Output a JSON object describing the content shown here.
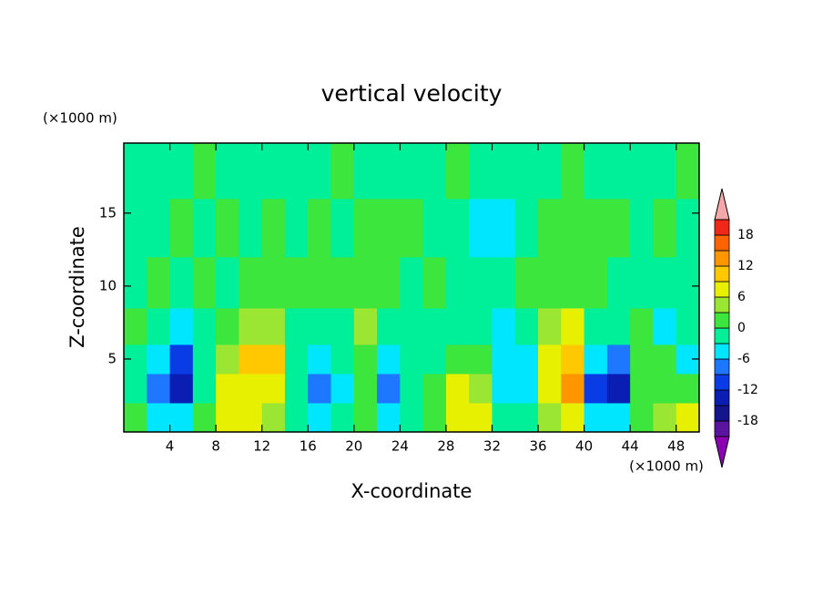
{
  "chart_data": {
    "type": "contour",
    "title": "vertical velocity",
    "x_label": "X-coordinate",
    "y_label": "Z-coordinate",
    "x_unit": "(×1000 m)",
    "y_unit": "(×1000 m)",
    "xlim": [
      0,
      50
    ],
    "ylim": [
      0,
      19.8
    ],
    "xticks": [
      4,
      8,
      12,
      16,
      20,
      24,
      28,
      32,
      36,
      40,
      44,
      48
    ],
    "yticks": [
      5,
      10,
      15
    ],
    "x": [
      1,
      3,
      5,
      7,
      9,
      11,
      13,
      15,
      17,
      19,
      21,
      23,
      25,
      27,
      29,
      31,
      33,
      35,
      37,
      39,
      41,
      43,
      45,
      47,
      49
    ],
    "y": [
      1,
      3,
      5,
      7,
      10,
      14,
      18
    ],
    "z": [
      [
        2,
        -4,
        -6,
        2,
        8,
        7,
        3,
        -1,
        -5,
        -2,
        1,
        -4,
        -2,
        1,
        6,
        7,
        -3,
        -2,
        4,
        6,
        -4,
        -6,
        2,
        3,
        6
      ],
      [
        -1,
        -8,
        -14,
        -2,
        7,
        8,
        7,
        -1,
        -7,
        -4,
        1,
        -8,
        -3,
        1,
        8,
        4,
        -4,
        -5,
        8,
        12,
        -10,
        -14,
        1,
        2,
        2
      ],
      [
        -2,
        -6,
        -12,
        -2,
        4,
        9,
        10,
        -2,
        -4,
        -3,
        2,
        -4,
        -2,
        -1,
        2,
        1,
        -4,
        -5,
        7,
        11,
        -5,
        -8,
        2,
        1,
        -4
      ],
      [
        1,
        -2,
        -4,
        -1,
        1,
        3,
        4,
        -1,
        -2,
        -1,
        4,
        -1,
        -1,
        -1,
        -1,
        -1,
        -4,
        -2,
        4,
        8,
        -2,
        -3,
        2,
        -4,
        -1
      ],
      [
        -1,
        1,
        -1,
        1,
        -1,
        1,
        1,
        1,
        1,
        1,
        1,
        1,
        -1,
        1,
        -1,
        -1,
        -1,
        1,
        1,
        1,
        1,
        -1,
        -1,
        -1,
        -1
      ],
      [
        -1,
        -1,
        1,
        -1,
        1,
        -1,
        1,
        -1,
        1,
        -1,
        1,
        1,
        1,
        -1,
        -1,
        -4,
        -4,
        -1,
        1,
        1,
        1,
        1,
        -1,
        1,
        -1
      ],
      [
        -1,
        -1,
        -1,
        1,
        -1,
        -1,
        -1,
        -1,
        -1,
        1,
        -1,
        -1,
        -1,
        -1,
        1,
        -1,
        -1,
        -1,
        -1,
        1,
        -1,
        -1,
        -1,
        -1,
        1
      ]
    ],
    "levels": [
      -21,
      -18,
      -15,
      -12,
      -9,
      -6,
      -3,
      0,
      3,
      6,
      9,
      12,
      15,
      18,
      21
    ],
    "colors": [
      "#8c00b4",
      "#5a14a0",
      "#14148c",
      "#0a1eb4",
      "#0a3ce6",
      "#1e78ff",
      "#00e6ff",
      "#00f09a",
      "#3ce63c",
      "#9be632",
      "#e6f000",
      "#ffc800",
      "#ff9600",
      "#ff6400",
      "#f02818",
      "#f4a8a8"
    ],
    "colorbar_ticks": [
      -18,
      -12,
      -6,
      0,
      6,
      12,
      18
    ]
  }
}
